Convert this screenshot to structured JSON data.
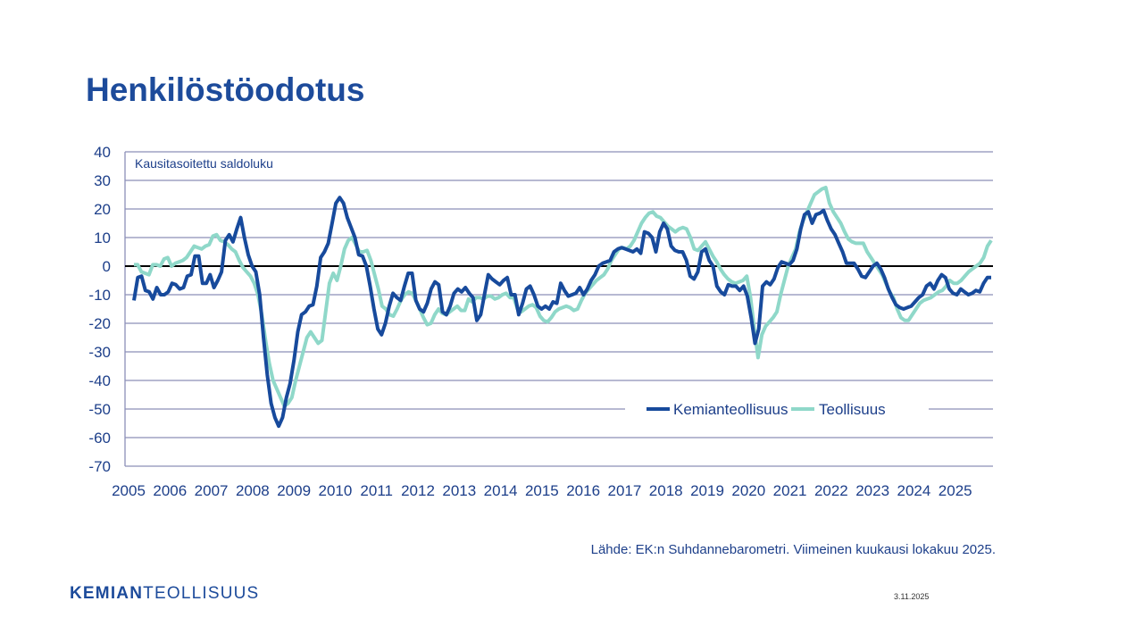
{
  "slide": {
    "title": "Henkilöstöodotus",
    "source": "Lähde: EK:n Suhdannebarometri. Viimeinen kuukausi lokakuu 2025.",
    "date": "3.11.2025",
    "logo_bold": "KEMIAN",
    "logo_light": "TEOLLISUUS"
  },
  "colors": {
    "kemia": "#174a9c",
    "teollisuus": "#8fd8c9",
    "text": "#1d3f8a",
    "grid": "#8c8fb8"
  },
  "chart_data": {
    "type": "line",
    "title": "Henkilöstöodotus",
    "ylabel": "Kausitasoitettu saldoluku",
    "xlabel": "",
    "ylim": [
      -70,
      40
    ],
    "yticks": [
      40,
      30,
      20,
      10,
      0,
      -10,
      -20,
      -30,
      -40,
      -50,
      -60,
      -70
    ],
    "xticks": [
      "2005",
      "2006",
      "2007",
      "2008",
      "2009",
      "2010",
      "2011",
      "2012",
      "2013",
      "2014",
      "2015",
      "2016",
      "2017",
      "2018",
      "2019",
      "2020",
      "2021",
      "2022",
      "2023",
      "2024",
      "2025"
    ],
    "x_range": [
      "2005-03",
      "2025-10"
    ],
    "legend_position": "bottom-right",
    "grid": true,
    "series": [
      {
        "name": "Kemianteollisuus",
        "values": [
          -12,
          -4,
          -3.5,
          -8.5,
          -9,
          -11.5,
          -7.5,
          -10,
          -10,
          -9,
          -6,
          -6.5,
          -8,
          -7.5,
          -3.5,
          -3,
          3.5,
          3.5,
          -6,
          -6,
          -3,
          -7.5,
          -5,
          -2,
          9,
          11,
          8.5,
          13,
          17,
          10,
          4,
          0,
          -2,
          -10,
          -25,
          -38,
          -48,
          -53,
          -56,
          -53,
          -46,
          -41,
          -33,
          -23,
          -17,
          -16,
          -14,
          -13.5,
          -7,
          3,
          5,
          8,
          15,
          22,
          24,
          22,
          17,
          13.5,
          10,
          4,
          3.5,
          0,
          -7,
          -15,
          -22,
          -24,
          -20,
          -14,
          -9.5,
          -11,
          -12,
          -7,
          -2.5,
          -2.5,
          -12,
          -15,
          -16,
          -13,
          -8,
          -5.5,
          -6.5,
          -16,
          -17,
          -14,
          -9.5,
          -8,
          -9,
          -7.5,
          -9.5,
          -11,
          -19,
          -17,
          -10,
          -3,
          -4.5,
          -5.5,
          -6.5,
          -5,
          -4,
          -10,
          -10,
          -17,
          -13,
          -8,
          -7,
          -10,
          -14,
          -15,
          -14,
          -15,
          -12.5,
          -13,
          -6,
          -8.5,
          -10.5,
          -10,
          -9.5,
          -7.5,
          -10,
          -8,
          -5,
          -3,
          0,
          1,
          1.5,
          2,
          5,
          6,
          6.5,
          6,
          5.5,
          5,
          6,
          4.5,
          12,
          11.5,
          10,
          5,
          12,
          15,
          13,
          7,
          5.5,
          5,
          5,
          2,
          -3.5,
          -4.5,
          -2,
          5,
          6,
          2,
          0,
          -7,
          -9,
          -10,
          -6.5,
          -7,
          -7,
          -8.5,
          -7,
          -10.5,
          -18,
          -27,
          -22,
          -7,
          -5.5,
          -6.5,
          -4.5,
          -0.5,
          1.5,
          1,
          0.5,
          2,
          6,
          13,
          18,
          19,
          15,
          18,
          18.5,
          19.5,
          16,
          13,
          11,
          8,
          5,
          1,
          1,
          1,
          -1,
          -3.5,
          -4,
          -2,
          0,
          1,
          -1,
          -4,
          -8,
          -11,
          -13.5,
          -14.5,
          -15,
          -14.5,
          -14,
          -12.5,
          -11,
          -10,
          -7,
          -6,
          -8,
          -5,
          -3,
          -4,
          -8,
          -9.5,
          -10,
          -8,
          -9,
          -10,
          -9.5,
          -8.5,
          -9,
          -6,
          -4,
          -4
        ]
      },
      {
        "name": "Teollisuus",
        "values": [
          0.5,
          0.5,
          -2,
          -2.5,
          -3,
          0.5,
          0.5,
          0,
          2.5,
          3,
          0,
          1,
          1.5,
          2,
          3,
          5,
          7,
          6.5,
          6,
          7,
          7.5,
          10.5,
          11,
          9,
          8.5,
          7.5,
          6,
          5,
          2,
          -0.5,
          -2,
          -3.5,
          -6,
          -10,
          -17,
          -26,
          -34,
          -40,
          -43,
          -46,
          -49,
          -48,
          -46,
          -40,
          -35,
          -30,
          -25,
          -23,
          -25,
          -27,
          -26,
          -16,
          -6,
          -2.5,
          -5,
          0,
          6,
          9,
          10,
          7.5,
          5,
          5,
          5.5,
          2,
          -3,
          -8,
          -14,
          -15,
          -17,
          -17.5,
          -15,
          -12,
          -10,
          -9,
          -9.5,
          -12,
          -15,
          -18,
          -20.5,
          -20,
          -17,
          -15,
          -16.5,
          -17,
          -16,
          -15,
          -14,
          -15.5,
          -15.5,
          -11.5,
          -12.5,
          -11,
          -11,
          -11.5,
          -10.5,
          -10.5,
          -11.5,
          -11,
          -10,
          -9.5,
          -11,
          -11,
          -15,
          -16,
          -15,
          -14,
          -13.5,
          -14.5,
          -17.5,
          -19,
          -19.5,
          -18,
          -16,
          -15,
          -14.5,
          -14,
          -14.5,
          -15.5,
          -15,
          -12,
          -9.5,
          -8,
          -6.5,
          -5,
          -4,
          -3,
          -1,
          2,
          4,
          6,
          6.5,
          6,
          7,
          9,
          12,
          15,
          17,
          18.5,
          19,
          17.5,
          17,
          15.5,
          14,
          13,
          12,
          13,
          13.5,
          13,
          10,
          6,
          5.5,
          7,
          8.5,
          6,
          3.5,
          1.5,
          -1,
          -3,
          -4.5,
          -5.5,
          -6,
          -5.5,
          -5,
          -3.5,
          -11,
          -22,
          -32,
          -24,
          -21,
          -19.5,
          -18,
          -16,
          -10,
          -5,
          0,
          3,
          6,
          12,
          16,
          19,
          22,
          25,
          26,
          27,
          27.5,
          22,
          19,
          17,
          15,
          12,
          9.5,
          8.5,
          8,
          8,
          8,
          5,
          3,
          1,
          -1,
          -3,
          -6,
          -9,
          -11,
          -15,
          -18,
          -19,
          -19,
          -17,
          -15,
          -13,
          -12,
          -11.5,
          -11,
          -10,
          -9,
          -8.5,
          -7,
          -5,
          -6,
          -6,
          -5,
          -3.5,
          -2,
          -1,
          0,
          1,
          3,
          7,
          9
        ]
      }
    ]
  }
}
